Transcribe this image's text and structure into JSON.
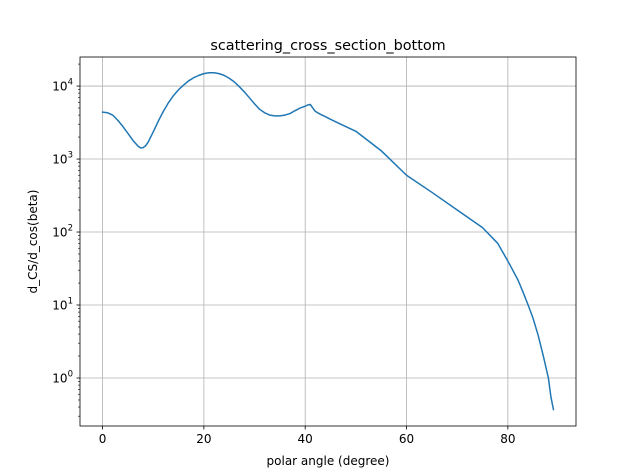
{
  "chart_data": {
    "type": "line",
    "title": "scattering_cross_section_bottom",
    "xlabel": "polar angle (degree)",
    "ylabel": "d_CS/d_cos(beta)",
    "yscale": "log",
    "xlim": [
      -4.45,
      93.45
    ],
    "ylim": [
      0.22,
      25000
    ],
    "grid": true,
    "line_color": "#1f77b4",
    "x_ticks": [
      0,
      20,
      40,
      60,
      80
    ],
    "x_tick_labels": [
      "0",
      "20",
      "40",
      "60",
      "80"
    ],
    "y_ticks": [
      1,
      10,
      100,
      1000,
      10000
    ],
    "y_tick_labels": [
      {
        "base": "10",
        "exp": "0"
      },
      {
        "base": "10",
        "exp": "1"
      },
      {
        "base": "10",
        "exp": "2"
      },
      {
        "base": "10",
        "exp": "3"
      },
      {
        "base": "10",
        "exp": "4"
      }
    ],
    "series": [
      {
        "x": [
          0,
          1,
          2,
          3,
          4,
          5,
          6,
          7,
          7.5,
          8,
          8.5,
          9,
          10,
          11,
          12,
          13,
          14,
          15,
          16,
          17,
          18,
          19,
          20,
          21,
          22,
          23,
          24,
          25,
          26,
          27,
          28,
          29,
          30,
          31,
          32,
          33,
          34,
          35,
          36,
          37,
          38,
          39,
          40,
          40.5,
          41,
          41.5,
          42,
          43,
          44,
          45,
          47,
          50,
          55,
          60,
          65,
          70,
          75,
          78,
          80,
          82,
          83,
          84,
          85,
          86,
          87,
          88,
          88.5,
          89
        ],
        "y": [
          4400,
          4300,
          4000,
          3400,
          2800,
          2250,
          1800,
          1500,
          1420,
          1430,
          1520,
          1700,
          2350,
          3300,
          4500,
          5900,
          7400,
          8900,
          10300,
          11800,
          13000,
          14000,
          14800,
          15200,
          15200,
          14800,
          14000,
          12800,
          11400,
          9800,
          8300,
          6900,
          5700,
          4800,
          4300,
          4000,
          3900,
          3900,
          4000,
          4200,
          4600,
          5000,
          5300,
          5500,
          5600,
          5000,
          4500,
          4100,
          3800,
          3500,
          3000,
          2400,
          1300,
          600,
          350,
          200,
          115,
          70,
          40,
          22,
          15,
          10,
          6.5,
          3.8,
          2.0,
          1.0,
          0.55,
          0.37
        ]
      }
    ]
  }
}
